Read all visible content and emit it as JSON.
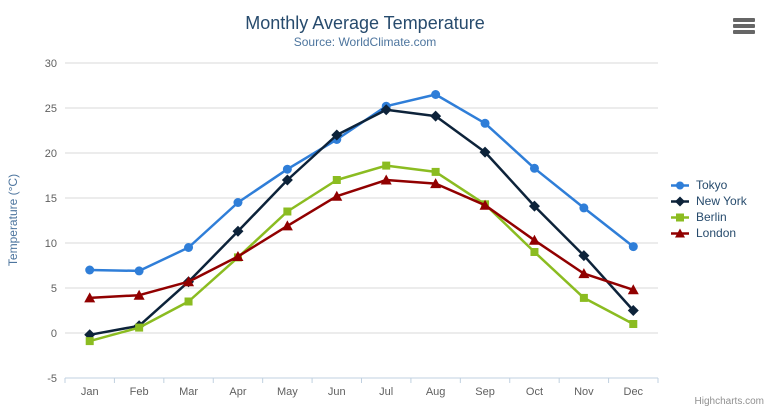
{
  "header": {
    "title": "Monthly Average Temperature",
    "subtitle": "Source: WorldClimate.com"
  },
  "menu": {
    "icon": "hamburger-icon"
  },
  "credits": "Highcharts.com",
  "chart_data": {
    "type": "line",
    "title": "Monthly Average Temperature",
    "subtitle": "Source: WorldClimate.com",
    "xlabel": "",
    "ylabel": "Temperature (°C)",
    "categories": [
      "Jan",
      "Feb",
      "Mar",
      "Apr",
      "May",
      "Jun",
      "Jul",
      "Aug",
      "Sep",
      "Oct",
      "Nov",
      "Dec"
    ],
    "ylim": [
      -5,
      30
    ],
    "ytick_step": 5,
    "ytick_labels": [
      "-5",
      "0",
      "5",
      "10",
      "15",
      "20",
      "25",
      "30"
    ],
    "grid": true,
    "legend_position": "right",
    "series": [
      {
        "name": "Tokyo",
        "color": "#2f7ed8",
        "marker": "circle",
        "values": [
          7.0,
          6.9,
          9.5,
          14.5,
          18.2,
          21.5,
          25.2,
          26.5,
          23.3,
          18.3,
          13.9,
          9.6
        ]
      },
      {
        "name": "New York",
        "color": "#0d233a",
        "marker": "diamond",
        "values": [
          -0.2,
          0.8,
          5.7,
          11.3,
          17.0,
          22.0,
          24.8,
          24.1,
          20.1,
          14.1,
          8.6,
          2.5
        ]
      },
      {
        "name": "Berlin",
        "color": "#8bbc21",
        "marker": "square",
        "values": [
          -0.9,
          0.6,
          3.5,
          8.4,
          13.5,
          17.0,
          18.6,
          17.9,
          14.3,
          9.0,
          3.9,
          1.0
        ]
      },
      {
        "name": "London",
        "color": "#910000",
        "marker": "triangle",
        "values": [
          3.9,
          4.2,
          5.7,
          8.5,
          11.9,
          15.2,
          17.0,
          16.6,
          14.2,
          10.3,
          6.6,
          4.8
        ]
      }
    ],
    "colors": {
      "title": "#274b6d",
      "subtitle": "#4d759e",
      "axis_title": "#4d759e",
      "tick_label": "#606060",
      "grid_line": "#d8d8d8",
      "axis_line": "#c0d0e0",
      "legend_text": "#274b6d",
      "credit": "#909090",
      "menu_icon": "#666666"
    }
  }
}
